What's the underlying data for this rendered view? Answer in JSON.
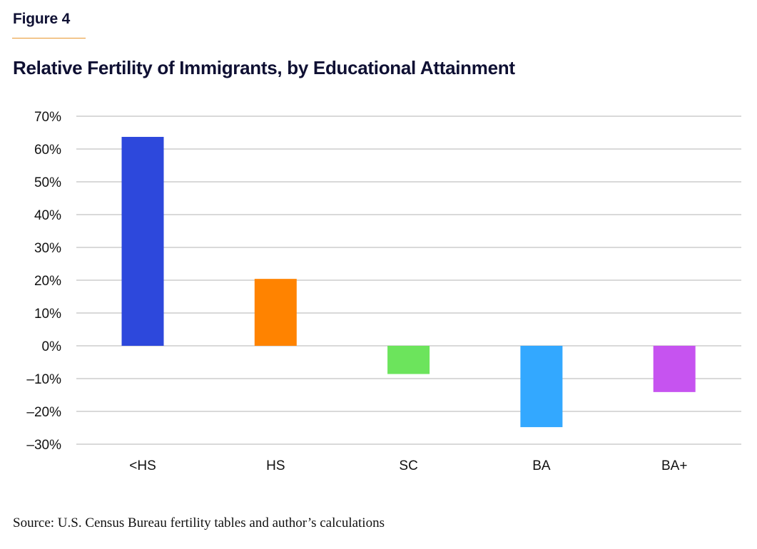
{
  "figure_label": "Figure 4",
  "source_note": "Source: U.S. Census Bureau fertility tables and author’s calculations",
  "colors": {
    "heading": "#0f1033",
    "accent_rule": "#e8962e",
    "gridline": "#d9d9d9"
  },
  "chart_data": {
    "type": "bar",
    "title": "Relative Fertility of Immigrants, by Educational Attainment",
    "xlabel": "",
    "ylabel": "",
    "categories": [
      "<HS",
      "HS",
      "SC",
      "BA",
      "BA+"
    ],
    "values": [
      63.7,
      20.4,
      -8.6,
      -24.8,
      -14.1
    ],
    "unit": "%",
    "bar_colors": [
      "#2d48dc",
      "#ff8300",
      "#6ce45c",
      "#33a8ff",
      "#c653f0"
    ],
    "ylim": [
      -30,
      70
    ],
    "yticks": [
      70,
      60,
      50,
      40,
      30,
      20,
      10,
      0,
      -10,
      -20,
      -30
    ],
    "ytick_labels": [
      "70%",
      "60%",
      "50%",
      "40%",
      "30%",
      "20%",
      "10%",
      "0%",
      "–10%",
      "–20%",
      "–30%"
    ],
    "grid": true,
    "legend": "none"
  }
}
